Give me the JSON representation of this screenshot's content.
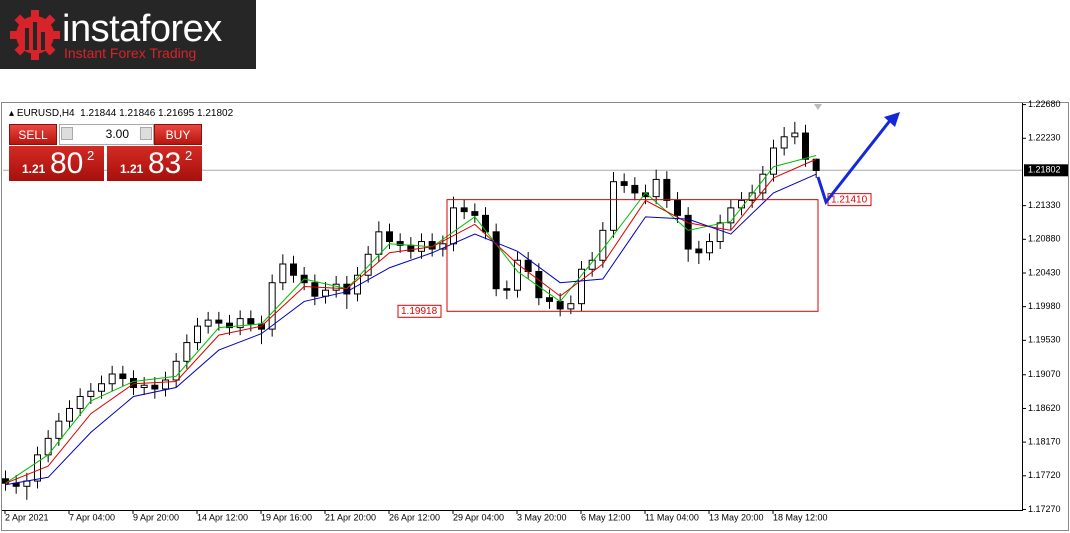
{
  "logo": {
    "name": "instaforex",
    "tagline": "Instant Forex Trading"
  },
  "trade_panel": {
    "sell": "SELL",
    "buy": "BUY",
    "volume": "3.00",
    "bid": {
      "big": "1.21",
      "pips": "80",
      "fraction": "2"
    },
    "ask": {
      "big": "1.21",
      "pips": "83",
      "fraction": "2"
    }
  },
  "chart_data": {
    "type": "candlestick",
    "symbol": "EURUSD,H4",
    "quotes": [
      1.21844,
      1.21846,
      1.21695,
      1.21802
    ],
    "categories": [
      "2 Apr 2021",
      null,
      null,
      null,
      null,
      null,
      "7 Apr 04:00",
      null,
      null,
      null,
      null,
      null,
      "9 Apr 20:00",
      null,
      null,
      null,
      null,
      null,
      "14 Apr 12:00",
      null,
      null,
      null,
      null,
      null,
      "19 Apr 16:00",
      null,
      null,
      null,
      null,
      null,
      "21 Apr 20:00",
      null,
      null,
      null,
      null,
      null,
      "26 Apr 12:00",
      null,
      null,
      null,
      null,
      null,
      "29 Apr 04:00",
      null,
      null,
      null,
      null,
      null,
      "3 May 20:00",
      null,
      null,
      null,
      null,
      null,
      "6 May 12:00",
      null,
      null,
      null,
      null,
      null,
      "11 May 04:00",
      null,
      null,
      null,
      null,
      null,
      "13 May 20:00",
      null,
      null,
      null,
      null,
      null,
      "18 May 12:00",
      null,
      null,
      null,
      null
    ],
    "open": [
      1.1768,
      1.1762,
      1.1758,
      1.1765,
      1.18,
      1.1822,
      1.1845,
      1.1862,
      1.1878,
      1.1885,
      1.1895,
      1.1908,
      1.1902,
      1.189,
      1.1893,
      1.1888,
      1.19,
      1.1925,
      1.195,
      1.1972,
      1.198,
      1.1976,
      1.197,
      1.1982,
      1.1975,
      1.1968,
      1.203,
      1.2055,
      1.204,
      1.203,
      1.2012,
      1.202,
      1.2028,
      1.2015,
      1.204,
      1.2068,
      1.2098,
      1.2085,
      1.208,
      1.2072,
      1.2085,
      1.2075,
      1.2082,
      1.213,
      1.2125,
      1.212,
      1.2098,
      1.2022,
      1.202,
      1.206,
      1.2045,
      1.201,
      1.2005,
      1.1995,
      1.2002,
      1.2048,
      1.206,
      1.21,
      1.2165,
      1.216,
      1.215,
      1.2145,
      1.2168,
      1.214,
      1.212,
      1.2075,
      1.207,
      1.2085,
      1.211,
      1.213,
      1.214,
      1.215,
      1.2175,
      1.221,
      1.2225,
      1.223,
      1.2195
    ],
    "high": [
      1.1779,
      1.1773,
      1.1776,
      1.1811,
      1.1833,
      1.1856,
      1.1873,
      1.1889,
      1.1896,
      1.1906,
      1.1919,
      1.1919,
      1.1913,
      1.1904,
      1.1904,
      1.1911,
      1.1936,
      1.1961,
      1.1983,
      1.1991,
      1.1991,
      1.1987,
      1.1993,
      1.1993,
      1.1986,
      1.2041,
      1.2068,
      1.2066,
      1.2051,
      1.2041,
      1.2031,
      1.2039,
      1.2039,
      1.2051,
      1.2079,
      1.2112,
      1.2109,
      1.2096,
      1.2091,
      1.2096,
      1.2096,
      1.2093,
      1.2145,
      1.2141,
      1.2136,
      1.2131,
      1.2109,
      1.2033,
      1.2071,
      1.2071,
      1.2056,
      1.2021,
      1.2016,
      1.2013,
      1.2059,
      1.2071,
      1.2111,
      1.2178,
      1.2176,
      1.2171,
      1.2161,
      1.2181,
      1.2179,
      1.2151,
      1.2131,
      1.2086,
      1.2096,
      1.2121,
      1.2141,
      1.2151,
      1.2161,
      1.2186,
      1.2221,
      1.2238,
      1.2245,
      1.2241,
      1.2196
    ],
    "low": [
      1.1752,
      1.1748,
      1.174,
      1.1755,
      1.179,
      1.1812,
      1.1835,
      1.1852,
      1.1868,
      1.1875,
      1.1885,
      1.1892,
      1.188,
      1.188,
      1.1875,
      1.1878,
      1.189,
      1.1915,
      1.194,
      1.1962,
      1.1966,
      1.196,
      1.196,
      1.1965,
      1.1948,
      1.1958,
      1.202,
      1.203,
      1.202,
      1.2,
      1.2002,
      1.201,
      1.1995,
      1.2005,
      1.203,
      1.2058,
      1.2075,
      1.207,
      1.2062,
      1.2062,
      1.2065,
      1.2065,
      1.2072,
      1.2115,
      1.211,
      1.2088,
      1.2012,
      1.2008,
      1.201,
      1.2035,
      1.2,
      1.1995,
      1.1985,
      1.1988,
      1.1992,
      1.2038,
      1.205,
      1.209,
      1.215,
      1.214,
      1.2135,
      1.2135,
      1.213,
      1.211,
      1.2058,
      1.2055,
      1.206,
      1.2075,
      1.21,
      1.212,
      1.213,
      1.214,
      1.2165,
      1.22,
      1.2215,
      1.2185,
      1.217
    ],
    "close": [
      1.1762,
      1.1758,
      1.1765,
      1.18,
      1.1822,
      1.1845,
      1.1862,
      1.1878,
      1.1885,
      1.1895,
      1.1908,
      1.1902,
      1.189,
      1.1893,
      1.1888,
      1.19,
      1.1925,
      1.195,
      1.1972,
      1.198,
      1.1976,
      1.197,
      1.1982,
      1.1975,
      1.1968,
      1.203,
      1.2055,
      1.204,
      1.203,
      1.2012,
      1.202,
      1.2028,
      1.2015,
      1.204,
      1.2068,
      1.2098,
      1.2085,
      1.208,
      1.2072,
      1.2085,
      1.2075,
      1.2082,
      1.213,
      1.2125,
      1.212,
      1.2098,
      1.2022,
      1.202,
      1.206,
      1.2045,
      1.201,
      1.2005,
      1.1995,
      1.2002,
      1.2048,
      1.206,
      1.21,
      1.2165,
      1.216,
      1.215,
      1.2145,
      1.2168,
      1.214,
      1.212,
      1.2075,
      1.207,
      1.2085,
      1.211,
      1.213,
      1.214,
      1.215,
      1.2175,
      1.221,
      1.2225,
      1.223,
      1.2195,
      1.218
    ],
    "lines": [
      {
        "color": "#00c000",
        "x": [
          0,
          4,
          8,
          12,
          16,
          20,
          24,
          28,
          32,
          36,
          40,
          44,
          48,
          52,
          56,
          60,
          64,
          68,
          72,
          76
        ],
        "values": [
          1.1762,
          1.18,
          1.1872,
          1.1898,
          1.1905,
          1.197,
          1.1975,
          1.2035,
          1.2022,
          1.2082,
          1.2078,
          1.2118,
          1.2045,
          1.2005,
          1.2075,
          1.215,
          1.21,
          1.2112,
          1.2185,
          1.22
        ]
      },
      {
        "color": "#e00000",
        "x": [
          0,
          4,
          8,
          12,
          16,
          20,
          24,
          28,
          32,
          36,
          40,
          44,
          48,
          52,
          56,
          60,
          64,
          68,
          72,
          76
        ],
        "values": [
          1.1762,
          1.1785,
          1.1855,
          1.1895,
          1.1898,
          1.196,
          1.1972,
          1.2025,
          1.2022,
          1.207,
          1.2078,
          1.2108,
          1.2055,
          1.2012,
          1.2055,
          1.214,
          1.211,
          1.21,
          1.217,
          1.2195
        ]
      },
      {
        "color": "#0000c0",
        "x": [
          0,
          4,
          8,
          12,
          16,
          20,
          24,
          28,
          32,
          36,
          40,
          44,
          48,
          52,
          56,
          60,
          64,
          68,
          72,
          76
        ],
        "values": [
          1.176,
          1.177,
          1.183,
          1.1878,
          1.189,
          1.194,
          1.1962,
          1.2005,
          1.2018,
          1.205,
          1.207,
          1.2095,
          1.2072,
          1.203,
          1.2035,
          1.2118,
          1.2115,
          1.2095,
          1.215,
          1.2175
        ]
      }
    ],
    "zone": {
      "color": "#e00000",
      "high": {
        "value": 1.2141,
        "label": "1.21410"
      },
      "low": {
        "value": 1.19918,
        "label": "1.19918"
      }
    },
    "current_price": {
      "value": 1.21802,
      "label": "1.21802"
    },
    "ylim": [
      1.17263,
      1.22688
    ],
    "yticks": [
      {
        "value": 1.2268,
        "label": "1.22680"
      },
      {
        "value": 1.2223,
        "label": "1.22230"
      },
      {
        "value": 1.2133,
        "label": "1.21330"
      },
      {
        "value": 1.2088,
        "label": "1.20880"
      },
      {
        "value": 1.2043,
        "label": "1.20430"
      },
      {
        "value": 1.1998,
        "label": "1.19980"
      },
      {
        "value": 1.1953,
        "label": "1.19530"
      },
      {
        "value": 1.1907,
        "label": "1.19070"
      },
      {
        "value": 1.1862,
        "label": "1.18620"
      },
      {
        "value": 1.1817,
        "label": "1.18170"
      },
      {
        "value": 1.1772,
        "label": "1.17720"
      },
      {
        "value": 1.1727,
        "label": "1.17270"
      }
    ]
  }
}
